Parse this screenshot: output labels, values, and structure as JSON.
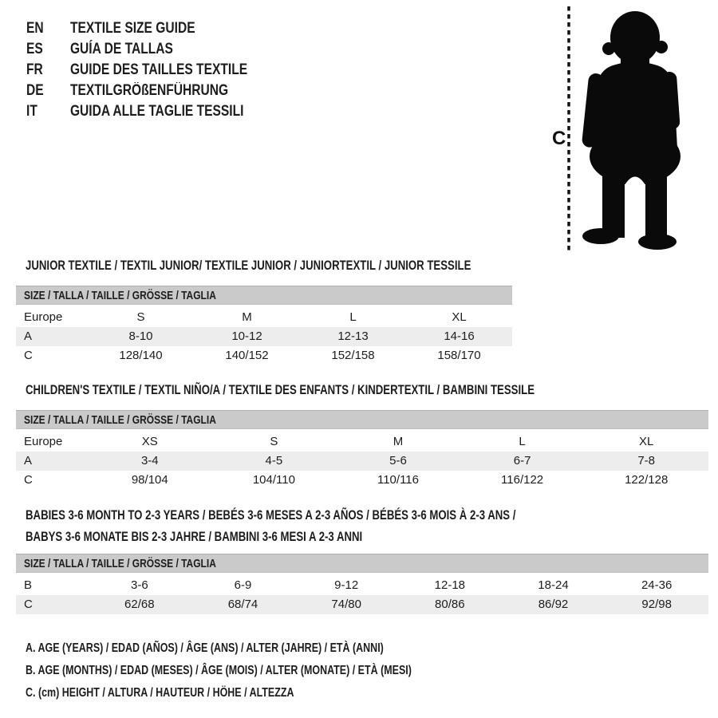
{
  "colors": {
    "bar_gray": "#cacaca",
    "stripe_gray": "#ededed",
    "text": "#1d1d1d",
    "background": "#ffffff",
    "silhouette": "#0a0a0a"
  },
  "languages": [
    {
      "code": "EN",
      "title": "TEXTILE SIZE GUIDE"
    },
    {
      "code": "ES",
      "title": "GUÍA DE TALLAS"
    },
    {
      "code": "FR",
      "title": "GUIDE DES TAILLES TEXTILE"
    },
    {
      "code": "DE",
      "title": "TEXTILGRÖßENFÜHRUNG"
    },
    {
      "code": "IT",
      "title": "GUIDA ALLE TAGLIE TESSILI"
    }
  ],
  "figure": {
    "height_label": "C",
    "icon": "baby-silhouette-with-dotted-height-line"
  },
  "sections": [
    {
      "title_lines": [
        "JUNIOR TEXTILE / TEXTIL JUNIOR/ TEXTILE JUNIOR / JUNIORTEXTIL / JUNIOR TESSILE"
      ],
      "size_header": "SIZE / TALLA / TAILLE / GRÖSSE / TAGLIA",
      "rows": [
        {
          "label": "Europe",
          "shaded": false,
          "values": [
            "S",
            "M",
            "L",
            "XL"
          ]
        },
        {
          "label": "A",
          "shaded": true,
          "values": [
            "8-10",
            "10-12",
            "12-13",
            "14-16"
          ]
        },
        {
          "label": "C",
          "shaded": false,
          "values": [
            "128/140",
            "140/152",
            "152/158",
            "158/170"
          ]
        }
      ]
    },
    {
      "title_lines": [
        "CHILDREN'S TEXTILE / TEXTIL NIÑO/A / TEXTILE DES ENFANTS / KINDERTEXTIL / BAMBINI TESSILE"
      ],
      "size_header": "SIZE / TALLA / TAILLE / GRÖSSE / TAGLIA",
      "rows": [
        {
          "label": "Europe",
          "shaded": false,
          "values": [
            "XS",
            "S",
            "M",
            "L",
            "XL"
          ]
        },
        {
          "label": "A",
          "shaded": true,
          "values": [
            "3-4",
            "4-5",
            "5-6",
            "6-7",
            "7-8"
          ]
        },
        {
          "label": "C",
          "shaded": false,
          "values": [
            "98/104",
            "104/110",
            "110/116",
            "116/122",
            "122/128"
          ]
        }
      ]
    },
    {
      "title_lines": [
        "BABIES 3-6 MONTH TO 2-3 YEARS / BEBÉS 3-6 MESES A 2-3 AÑOS / BÉBÉS 3-6 MOIS À 2-3 ANS /",
        "BABYS 3-6 MONATE BIS 2-3 JAHRE / BAMBINI 3-6 MESI A 2-3 ANNI"
      ],
      "size_header": "SIZE / TALLA / TAILLE / GRÖSSE / TAGLIA",
      "rows": [
        {
          "label": "B",
          "shaded": false,
          "values": [
            "3-6",
            "6-9",
            "9-12",
            "12-18",
            "18-24",
            "24-36"
          ]
        },
        {
          "label": "C",
          "shaded": true,
          "values": [
            "62/68",
            "68/74",
            "74/80",
            "80/86",
            "86/92",
            "92/98"
          ]
        }
      ]
    }
  ],
  "legend": [
    "A. AGE (YEARS) / EDAD (AÑOS) / ÂGE (ANS) / ALTER (JAHRE) / ETÀ (ANNI)",
    "B. AGE (MONTHS) / EDAD (MESES) / ÂGE (MOIS) / ALTER (MONATE) / ETÀ (MESI)",
    "C. (cm) HEIGHT / ALTURA / HAUTEUR / HÖHE / ALTEZZA"
  ]
}
